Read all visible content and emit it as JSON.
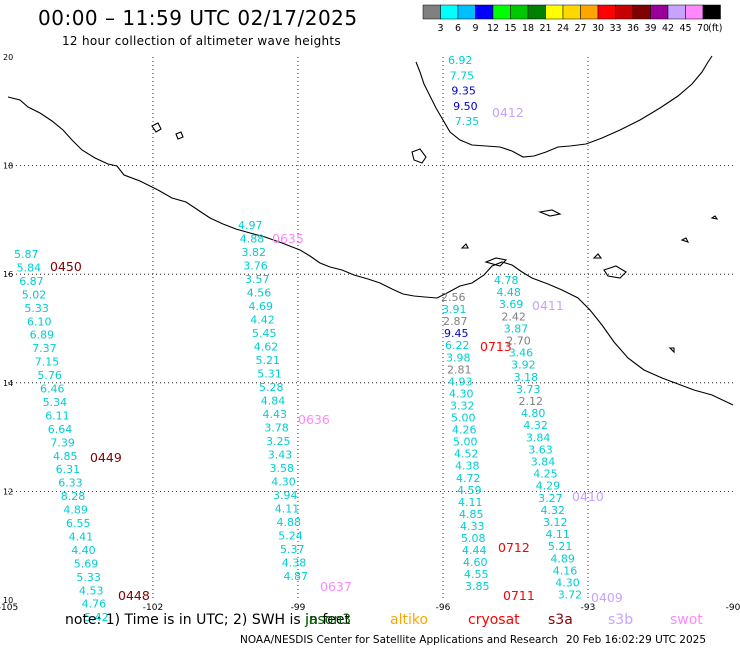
{
  "header": {
    "title": "00:00 – 11:59 UTC 02/17/2025",
    "subtitle": "12 hour collection of altimeter wave heights"
  },
  "colorbar": {
    "colors": [
      "#808080",
      "#00ffff",
      "#00bfff",
      "#0000ff",
      "#00ff00",
      "#00c800",
      "#008000",
      "#ffff00",
      "#ffd700",
      "#ffa500",
      "#ff0000",
      "#c80000",
      "#800000",
      "#990099",
      "#c8a2ff",
      "#ff88ff",
      "#000000"
    ],
    "ticks": [
      "3",
      "6",
      "9",
      "12",
      "15",
      "18",
      "21",
      "24",
      "27",
      "30",
      "33",
      "36",
      "39",
      "42",
      "45",
      "70"
    ],
    "unit": "(ft)"
  },
  "axes": {
    "lon_ticks": [
      "-105",
      "-102",
      "-99",
      "-96",
      "-93",
      "-90"
    ],
    "lat_ticks": [
      "20",
      "18",
      "16",
      "14",
      "12",
      "10"
    ]
  },
  "tracks": [
    {
      "id": "track-0450-0449-0448",
      "labels": [
        {
          "id": "0450",
          "color": "#800000",
          "row": 4
        },
        {
          "id": "0449",
          "color": "#800000",
          "row": 25
        },
        {
          "id": "0448",
          "color": "#800000",
          "row": 42
        }
      ],
      "values": [
        [
          "5.87",
          "#00ced1"
        ],
        [
          "5.84",
          "#00ced1"
        ],
        [
          "6.87",
          "#00ced1"
        ],
        [
          "5.02",
          "#00ced1"
        ],
        [
          "5.33",
          "#00ced1"
        ],
        [
          "6.10",
          "#00ced1"
        ],
        [
          "6.89",
          "#00ced1"
        ],
        [
          "7.37",
          "#00ced1"
        ],
        [
          "7.15",
          "#00ced1"
        ],
        [
          "5.76",
          "#00ced1"
        ],
        [
          "6.46",
          "#00ced1"
        ],
        [
          "5.34",
          "#00ced1"
        ],
        [
          "6.11",
          "#00ced1"
        ],
        [
          "6.64",
          "#00ced1"
        ],
        [
          "7.39",
          "#00ced1"
        ],
        [
          "4.85",
          "#00ced1"
        ],
        [
          "6.31",
          "#00ced1"
        ],
        [
          "6.33",
          "#00ced1"
        ],
        [
          "8.28",
          "#00ced1"
        ],
        [
          "4.89",
          "#00ced1"
        ],
        [
          "6.55",
          "#00ced1"
        ],
        [
          "4.41",
          "#00ced1"
        ],
        [
          "4.40",
          "#00ced1"
        ],
        [
          "5.69",
          "#00ced1"
        ],
        [
          "5.33",
          "#00ced1"
        ],
        [
          "4.53",
          "#00ced1"
        ],
        [
          "4.76",
          "#00ced1"
        ],
        [
          "5.42",
          "#00ced1"
        ]
      ]
    },
    {
      "id": "track-0635-0636-0637",
      "labels": [
        {
          "id": "0635",
          "color": "#ff88ff"
        },
        {
          "id": "0636",
          "color": "#ff88ff"
        },
        {
          "id": "0637",
          "color": "#ff88ff"
        }
      ],
      "values": [
        [
          "4.97",
          "#00ced1"
        ],
        [
          "4.88",
          "#00ced1"
        ],
        [
          "3.82",
          "#00ced1"
        ],
        [
          "3.76",
          "#00ced1"
        ],
        [
          "3.57",
          "#00ced1"
        ],
        [
          "4.56",
          "#00ced1"
        ],
        [
          "4.69",
          "#00ced1"
        ],
        [
          "4.42",
          "#00ced1"
        ],
        [
          "5.45",
          "#00ced1"
        ],
        [
          "4.62",
          "#00ced1"
        ],
        [
          "5.21",
          "#00ced1"
        ],
        [
          "5.31",
          "#00ced1"
        ],
        [
          "5.28",
          "#00ced1"
        ],
        [
          "4.84",
          "#00ced1"
        ],
        [
          "4.43",
          "#00ced1"
        ],
        [
          "3.78",
          "#00ced1"
        ],
        [
          "3.25",
          "#00ced1"
        ],
        [
          "3.43",
          "#00ced1"
        ],
        [
          "3.58",
          "#00ced1"
        ],
        [
          "4.30",
          "#00ced1"
        ],
        [
          "3.94",
          "#00ced1"
        ],
        [
          "4.11",
          "#00ced1"
        ],
        [
          "4.88",
          "#00ced1"
        ],
        [
          "5.24",
          "#00ced1"
        ],
        [
          "5.37",
          "#00ced1"
        ],
        [
          "4.38",
          "#00ced1"
        ],
        [
          "4.87",
          "#00ced1"
        ]
      ]
    },
    {
      "id": "track-top",
      "values": [
        [
          "6.92",
          "#00ced1"
        ],
        [
          "7.75",
          "#00ced1"
        ],
        [
          "9.35",
          "#0000cd"
        ],
        [
          "9.50",
          "#0000cd"
        ],
        [
          "7.35",
          "#00ced1"
        ]
      ],
      "label": {
        "id": "0412",
        "color": "#c8a2ff"
      }
    },
    {
      "id": "track-0713-0712-0711",
      "values": [
        [
          "2.56",
          "#808080"
        ],
        [
          "3.91",
          "#00ced1"
        ],
        [
          "2.87",
          "#808080"
        ],
        [
          "9.45",
          "#0000cd"
        ],
        [
          "6.22",
          "#00ced1"
        ],
        [
          "3.98",
          "#00ced1"
        ],
        [
          "2.81",
          "#808080"
        ],
        [
          "4.93",
          "#00ced1"
        ],
        [
          "4.30",
          "#00ced1"
        ],
        [
          "3.32",
          "#00ced1"
        ],
        [
          "5.00",
          "#00ced1"
        ],
        [
          "4.26",
          "#00ced1"
        ],
        [
          "5.00",
          "#00ced1"
        ],
        [
          "4.52",
          "#00ced1"
        ],
        [
          "4.38",
          "#00ced1"
        ],
        [
          "4.72",
          "#00ced1"
        ],
        [
          "4.59",
          "#00ced1"
        ],
        [
          "4.11",
          "#00ced1"
        ],
        [
          "4.85",
          "#00ced1"
        ],
        [
          "4.33",
          "#00ced1"
        ],
        [
          "5.08",
          "#00ced1"
        ],
        [
          "4.44",
          "#00ced1"
        ],
        [
          "4.60",
          "#00ced1"
        ],
        [
          "4.55",
          "#00ced1"
        ],
        [
          "3.85",
          "#00ced1"
        ]
      ],
      "labels": [
        {
          "id": "0713",
          "color": "#ff0000"
        },
        {
          "id": "0712",
          "color": "#ff0000"
        },
        {
          "id": "0711",
          "color": "#ff0000"
        }
      ]
    },
    {
      "id": "track-0411-0410-0409",
      "values": [
        [
          "4.78",
          "#00ced1"
        ],
        [
          "4.48",
          "#00ced1"
        ],
        [
          "3.69",
          "#00ced1"
        ],
        [
          "2.42",
          "#808080"
        ],
        [
          "3.87",
          "#00ced1"
        ],
        [
          "2.70",
          "#808080"
        ],
        [
          "3.46",
          "#00ced1"
        ],
        [
          "3.92",
          "#00ced1"
        ],
        [
          "3.18",
          "#00ced1"
        ],
        [
          "3.73",
          "#00ced1"
        ],
        [
          "2.12",
          "#808080"
        ],
        [
          "4.80",
          "#00ced1"
        ],
        [
          "4.32",
          "#00ced1"
        ],
        [
          "3.84",
          "#00ced1"
        ],
        [
          "3.63",
          "#00ced1"
        ],
        [
          "3.84",
          "#00ced1"
        ],
        [
          "4.25",
          "#00ced1"
        ],
        [
          "4.29",
          "#00ced1"
        ],
        [
          "3.27",
          "#00ced1"
        ],
        [
          "4.32",
          "#00ced1"
        ],
        [
          "3.12",
          "#00ced1"
        ],
        [
          "4.11",
          "#00ced1"
        ],
        [
          "5.21",
          "#00ced1"
        ],
        [
          "4.89",
          "#00ced1"
        ],
        [
          "4.16",
          "#00ced1"
        ],
        [
          "4.30",
          "#00ced1"
        ],
        [
          "3.72",
          "#00ced1"
        ]
      ],
      "labels": [
        {
          "id": "0411",
          "color": "#c8a2ff"
        },
        {
          "id": "0410",
          "color": "#c8a2ff"
        },
        {
          "id": "0409",
          "color": "#c8a2ff"
        }
      ]
    }
  ],
  "notes": "note:  1) Time is in UTC;  2) SWH is in feet",
  "legend": [
    {
      "name": "jason3",
      "color": "#006400"
    },
    {
      "name": "altiko",
      "color": "#ffa500"
    },
    {
      "name": "cryosat",
      "color": "#ff0000"
    },
    {
      "name": "s3a",
      "color": "#8b0000"
    },
    {
      "name": "s3b",
      "color": "#c8a2ff"
    },
    {
      "name": "swot",
      "color": "#ff88ff"
    }
  ],
  "footer": {
    "org": "NOAA/NESDIS Center for Satellite Applications and Research",
    "timestamp": "20 Feb 16:02:29 UTC 2025"
  }
}
